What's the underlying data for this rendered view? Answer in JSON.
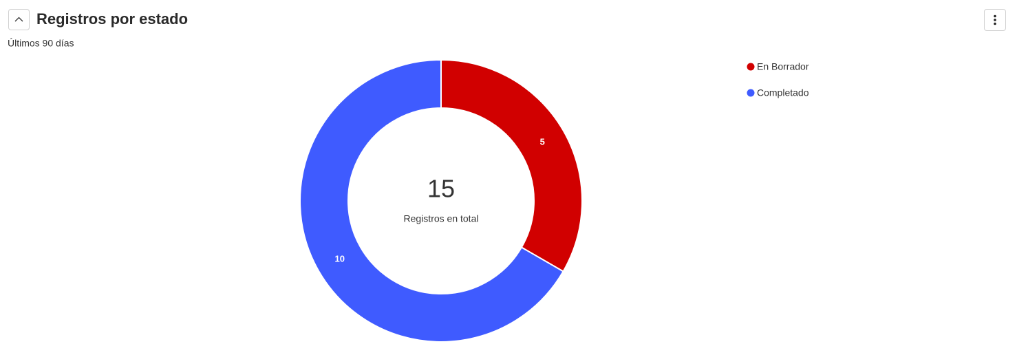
{
  "chart_data": {
    "type": "donut",
    "title": "Registros por estado",
    "subtitle": "Últimos 90 días",
    "categories": [
      "En Borrador",
      "Completado"
    ],
    "values": [
      5,
      10
    ],
    "colors": [
      "#d10000",
      "#3f5bff"
    ],
    "center_value": 15,
    "center_label": "Registros en total"
  }
}
